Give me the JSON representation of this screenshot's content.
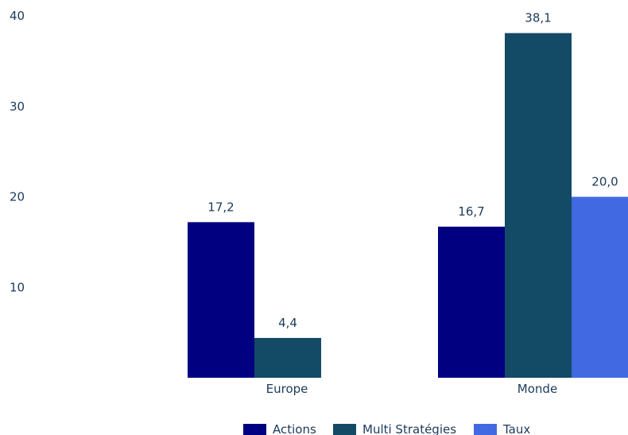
{
  "chart_data": {
    "type": "bar",
    "categories": [
      "Europe",
      "Monde"
    ],
    "series": [
      {
        "name": "Actions",
        "values": [
          17.2,
          16.7
        ],
        "labels": [
          "17,2",
          "16,7"
        ],
        "color": "#000080"
      },
      {
        "name": "Multi Stratégies",
        "values": [
          4.4,
          38.1
        ],
        "labels": [
          "4,4",
          "38,1"
        ],
        "color": "#134a66"
      },
      {
        "name": "Taux",
        "values": [
          null,
          20.0
        ],
        "labels": [
          null,
          "20,0"
        ],
        "color": "#4169e1"
      }
    ],
    "yticks": [
      10,
      20,
      30,
      40
    ],
    "ylim": [
      0,
      40
    ],
    "title": "",
    "xlabel": "",
    "ylabel": "",
    "grid": false,
    "legend_position": "bottom"
  }
}
